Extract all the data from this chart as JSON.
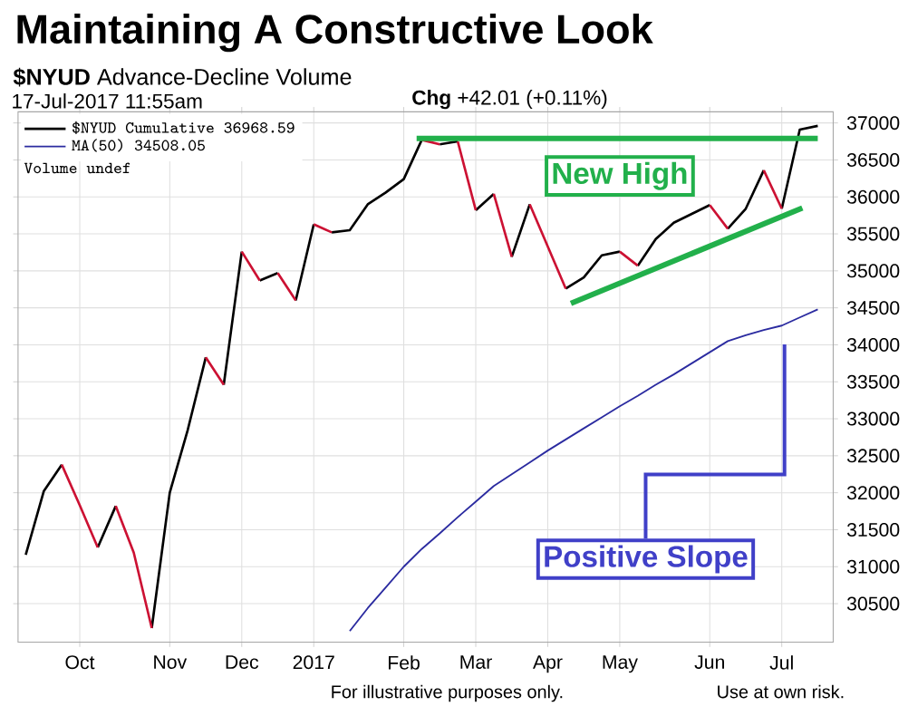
{
  "chart_data": {
    "type": "line",
    "title": "Maintaining A Constructive Look",
    "subtitle": "**$NYUD** Advance-Decline Volume",
    "annotations": [
      "17-Jul-2017 11:55am",
      "**Chg** +42.01 (+0.11%)",
      "Volume undef",
      {
        "text": "New High",
        "x": "2017-05-01",
        "y": 36790
      },
      "Positive Slope",
      "For illustrative purposes only.",
      "Use at own risk."
    ],
    "x": [
      "2017-01-16",
      "2017-01-23",
      "2017-01-30",
      "2017-02-06",
      "2017-02-13",
      "2017-02-20",
      "2017-02-27",
      "2017-03-06",
      "2017-03-13",
      "2017-03-20",
      "2017-03-27",
      "2017-04-03",
      "2017-04-10",
      "2017-04-17",
      "2017-04-24",
      "2017-05-01",
      "2017-05-08",
      "2017-05-15",
      "2017-05-22",
      "2017-05-29",
      "2017-06-05",
      "2017-06-12",
      "2017-06-19",
      "2017-06-26",
      "2017-07-03",
      "2017-07-10",
      "2017-07-17"
    ],
    "series": [
      {
        "name": "$NYUD Cumulative 36968.59",
        "color": "#000000",
        "x": [
          "2016-09-12",
          "2016-09-19",
          "2016-09-26",
          null,
          "2016-10-10",
          "2016-10-17",
          null,
          "2016-10-31",
          "2016-11-07",
          "2016-11-14",
          "2016-11-21",
          null,
          "2016-11-28",
          "2016-12-05",
          null,
          "2016-12-12",
          "2016-12-19",
          null,
          "2016-12-26",
          "2017-01-02",
          null,
          "2017-01-09",
          "2017-01-16",
          "2017-01-23",
          "2017-01-30",
          "2017-02-06",
          "2017-02-13",
          null,
          "2017-02-20",
          "2017-02-27",
          null,
          "2017-03-06",
          "2017-03-13",
          null,
          "2017-03-20",
          "2017-03-27",
          null,
          "2017-04-10",
          "2017-04-17",
          "2017-04-24",
          "2017-05-01",
          null,
          "2017-05-08",
          "2017-05-15",
          "2017-05-22",
          "2017-05-29",
          "2017-06-05",
          null,
          "2017-06-12",
          "2017-06-19",
          "2017-06-26",
          null,
          "2017-07-03",
          "2017-07-10",
          "2017-07-17"
        ],
        "values": [
          31160,
          32020,
          32380,
          null,
          31260,
          31820,
          null,
          30170,
          32000,
          32850,
          33830,
          null,
          33460,
          35260,
          null,
          34870,
          34970,
          null,
          34600,
          35630,
          null,
          35520,
          35550,
          35900,
          36060,
          36240,
          36770,
          null,
          36710,
          36750,
          null,
          35820,
          36040,
          null,
          35190,
          35900,
          null,
          34760,
          34910,
          35210,
          35260,
          null,
          35070,
          35430,
          35650,
          35770,
          35890,
          null,
          35570,
          35840,
          36360,
          null,
          35840,
          36910,
          36960
        ]
      },
      {
        "color": "#cc1133",
        "x": [
          "2016-09-26",
          "2016-10-03",
          "2016-10-10",
          null,
          "2016-10-17",
          "2016-10-24",
          "2016-10-31",
          null,
          "2016-11-21",
          "2016-11-28",
          null,
          "2016-12-05",
          "2016-12-12",
          null,
          "2016-12-19",
          "2016-12-26",
          null,
          "2017-01-02",
          "2017-01-09",
          null,
          "2017-02-13",
          "2017-02-20",
          null,
          "2017-02-27",
          "2017-03-06",
          null,
          "2017-03-13",
          "2017-03-20",
          null,
          "2017-03-27",
          "2017-04-03",
          "2017-04-10",
          null,
          "2017-05-01",
          "2017-05-08",
          null,
          "2017-06-05",
          "2017-06-12",
          null,
          "2017-06-26",
          "2017-07-03"
        ],
        "values": [
          32380,
          31830,
          31260,
          null,
          31820,
          31190,
          30170,
          null,
          33830,
          33460,
          null,
          35260,
          34870,
          null,
          34970,
          34600,
          null,
          35630,
          35520,
          null,
          36770,
          36710,
          null,
          36750,
          35820,
          null,
          36040,
          35190,
          null,
          35900,
          35330,
          34760,
          null,
          35260,
          35070,
          null,
          35890,
          35570,
          null,
          36360,
          35840
        ]
      },
      {
        "name": "MA(50) 34508.05",
        "color": "#2b2ba0",
        "values": [
          30130,
          30440,
          30720,
          31000,
          31240,
          31450,
          31670,
          31880,
          32090,
          32250,
          32410,
          32570,
          32720,
          32870,
          33020,
          33170,
          33310,
          33460,
          33600,
          33750,
          33900,
          34050,
          34130,
          34200,
          34260,
          34370,
          34480
        ]
      },
      {
        "color": "#22b04b",
        "x": [
          "2017-02-11",
          "2017-07-17"
        ],
        "values": [
          36790,
          36790
        ]
      },
      {
        "color": "#22b04b",
        "x": [
          "2017-04-12",
          "2017-07-11"
        ],
        "values": [
          34560,
          35850
        ]
      }
    ],
    "xlim": [
      "2016-09-09",
      "2017-07-23"
    ],
    "ylim": [
      29980,
      37150
    ],
    "xticks": [
      {
        "value": "2016-10-03",
        "label": "Oct"
      },
      {
        "value": "2016-11-07",
        "label": "Nov"
      },
      {
        "value": "2016-12-05",
        "label": "Dec"
      },
      {
        "value": "2017-01-02",
        "label": "2017"
      },
      {
        "value": "2017-02-06",
        "label": "Feb"
      },
      {
        "value": "2017-03-06",
        "label": "Mar"
      },
      {
        "value": "2017-04-03",
        "label": "Apr"
      },
      {
        "value": "2017-05-01",
        "label": "May"
      },
      {
        "value": "2017-06-05",
        "label": "Jun"
      },
      {
        "value": "2017-07-03",
        "label": "Jul"
      }
    ],
    "yticks": [
      30500,
      31000,
      31500,
      32000,
      32500,
      33000,
      33500,
      34000,
      34500,
      35000,
      35500,
      36000,
      36500,
      37000
    ],
    "grid": true,
    "legend": "top left",
    "line_style": "solid",
    "marker": "none"
  }
}
